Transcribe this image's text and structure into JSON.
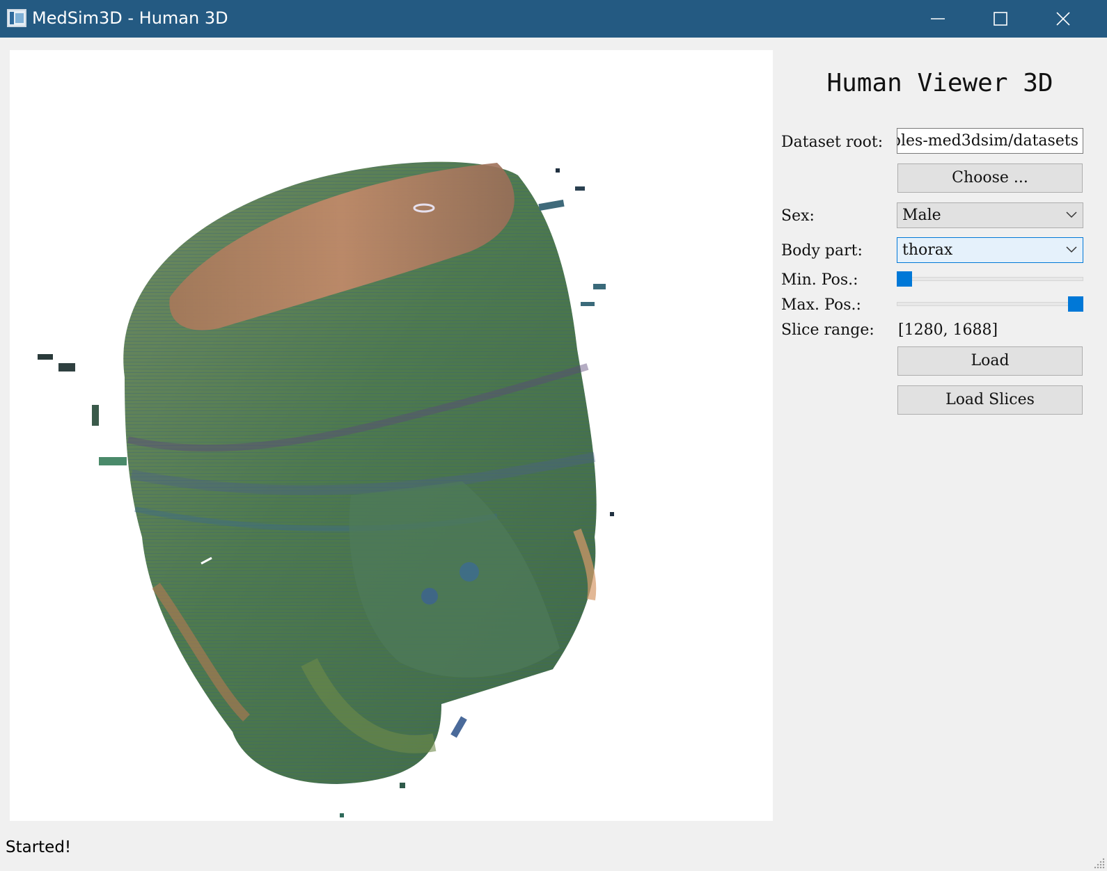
{
  "window": {
    "title": "MedSim3D - Human 3D",
    "icon": "app-icon",
    "controls": [
      "minimize-icon",
      "maximize-icon",
      "close-icon"
    ]
  },
  "viewport": {
    "content": "3d-rendered-human-thorax-volume"
  },
  "panel": {
    "title": "Human Viewer 3D",
    "dataset_root_label": "Dataset root:",
    "dataset_root_value": "ples-med3dsim/datasets",
    "choose_label": "Choose ...",
    "sex_label": "Sex:",
    "sex_value": "Male",
    "body_part_label": "Body part:",
    "body_part_value": "thorax",
    "min_pos_label": "Min. Pos.:",
    "max_pos_label": "Max. Pos.:",
    "min_pos_slider": 0.0,
    "max_pos_slider": 1.0,
    "slice_range_label": "Slice range:",
    "slice_range_value": "[1280, 1688]",
    "load_label": "Load",
    "load_slices_label": "Load Slices"
  },
  "status": {
    "text": "Started!"
  },
  "colors": {
    "titlebar": "#245a82",
    "accent": "#0078d7",
    "background": "#f0f0f0"
  }
}
